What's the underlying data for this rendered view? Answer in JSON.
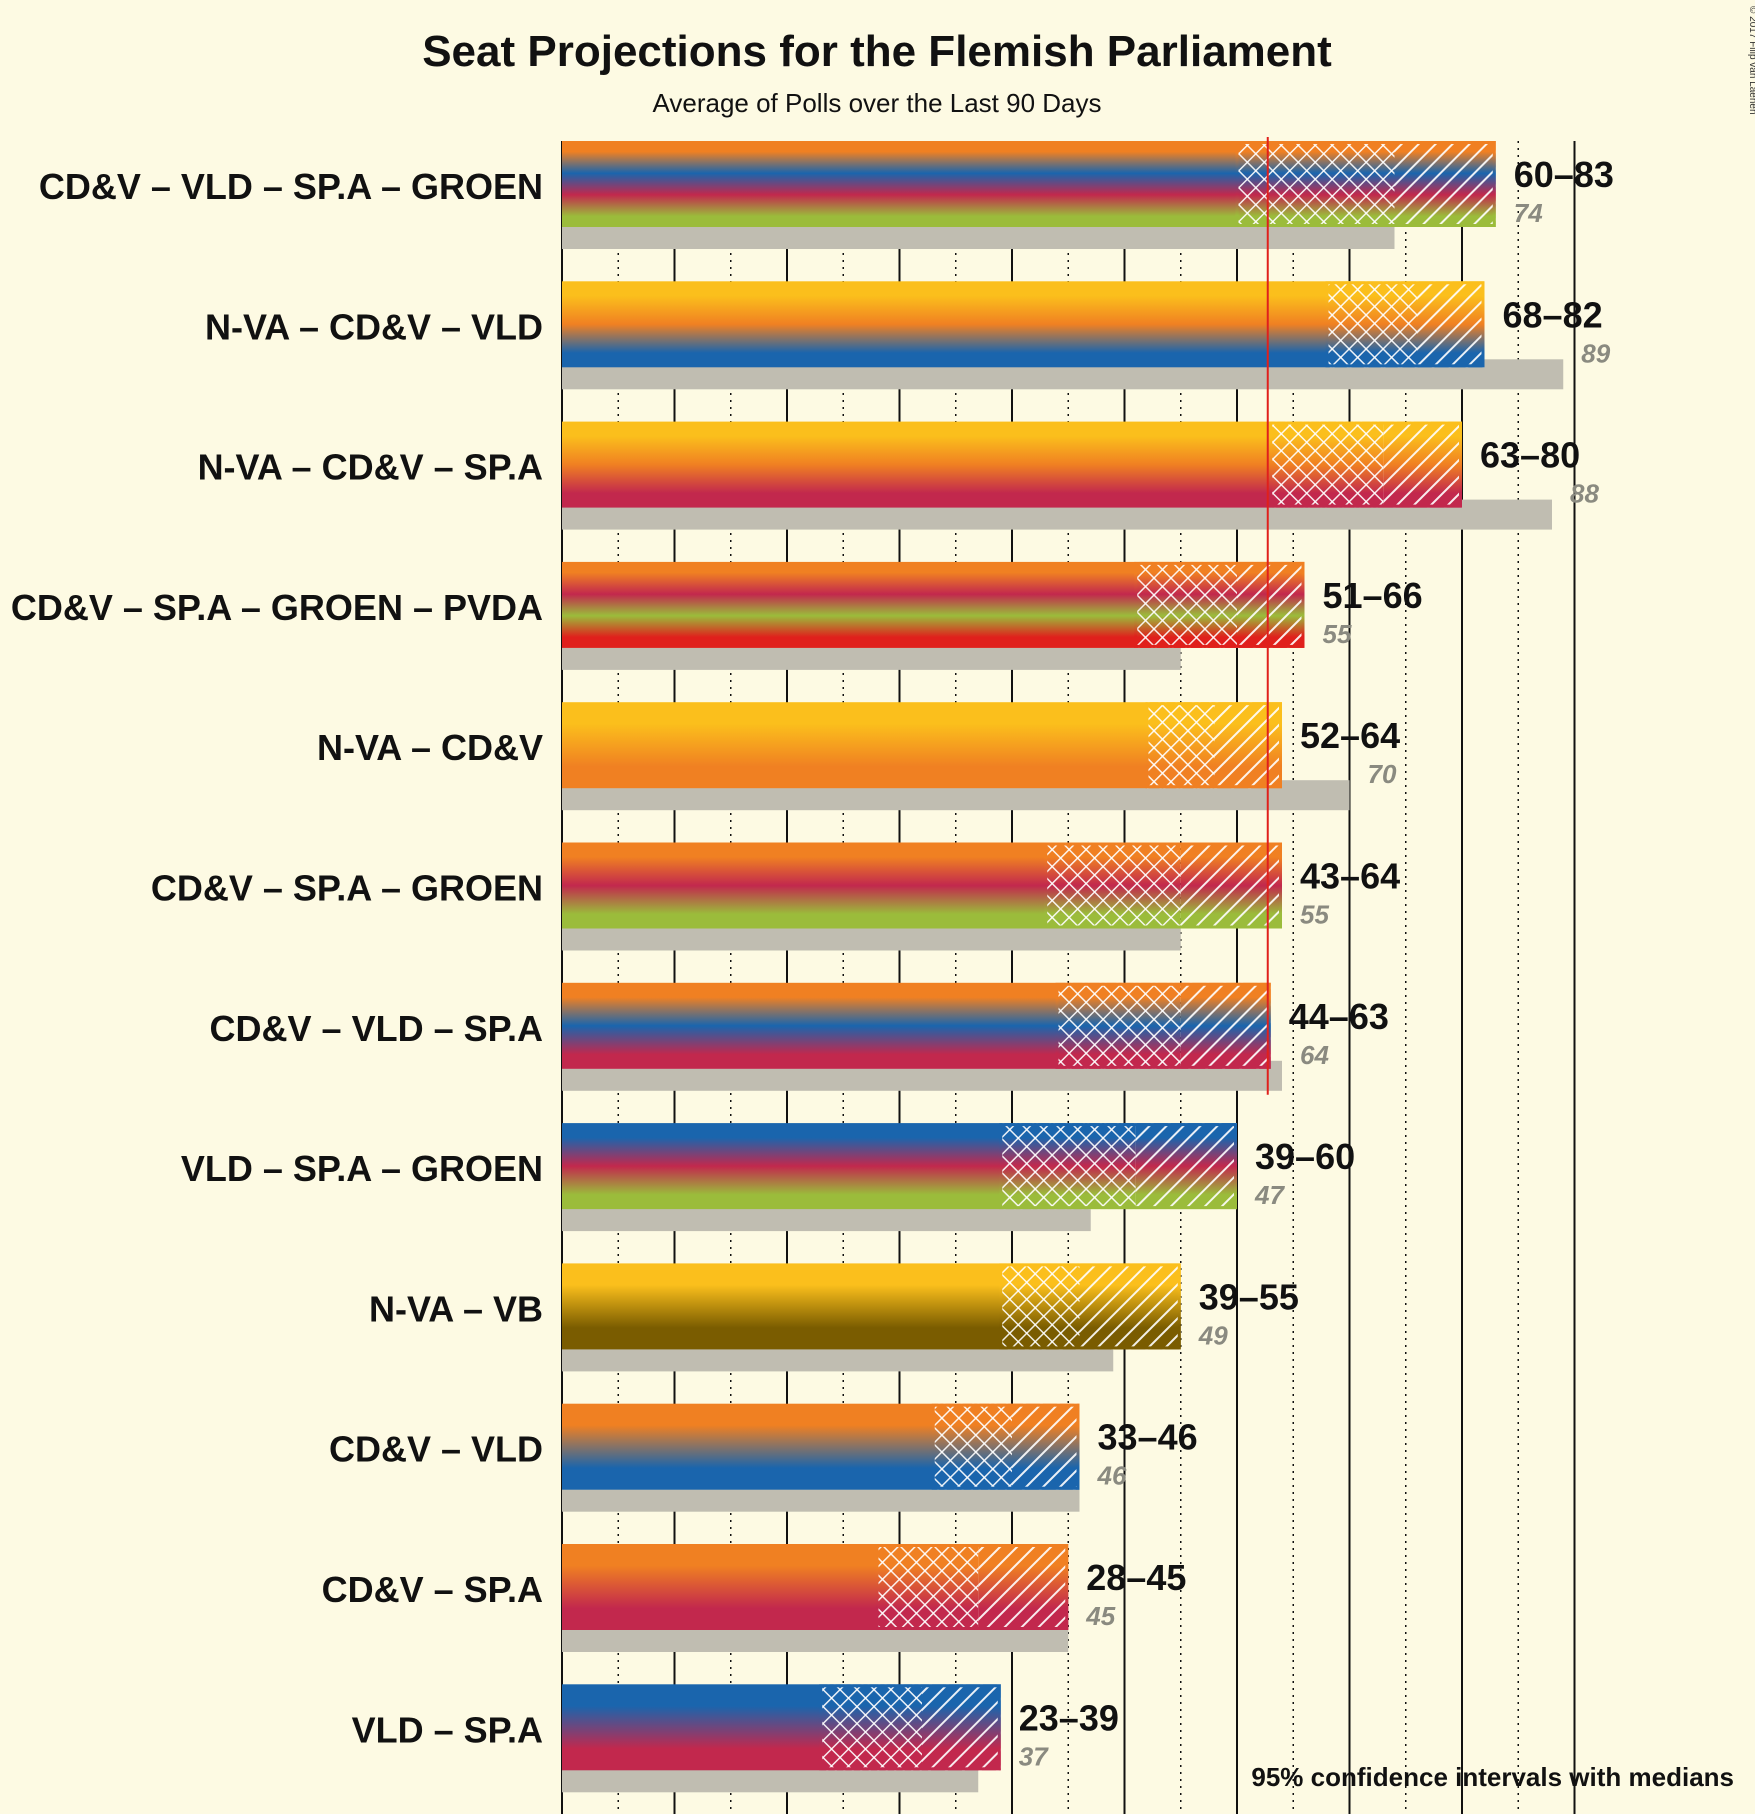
{
  "title": "Seat Projections for the Flemish Parliament",
  "subtitle": "Average of Polls over the Last 90 Days",
  "note": "95% confidence intervals with medians",
  "copyright": "© 2017 Filip van Laenen",
  "colors": {
    "background": "#fdfae3",
    "previous_result_bar": "#c0bdb1",
    "majority_line": "#e0201c",
    "CD&V": "#f08022",
    "VLD": "#1a65ad",
    "SP.A": "#c2284d",
    "GROEN": "#9bbc3b",
    "N-VA": "#fbbf1c",
    "PVDA": "#e0201c",
    "VB": "#7a5c00"
  },
  "chart_data": {
    "type": "bar",
    "orientation": "horizontal",
    "title": "Seat Projections for the Flemish Parliament",
    "subtitle": "Average of Polls over the Last 90 Days",
    "majority_threshold": 63,
    "xlim": [
      0,
      90
    ],
    "grid": "dotted vertical lines every 5 seats, solid every 10",
    "legend": "bottom-right note",
    "coalitions": [
      {
        "label": "CD&V – VLD – SP.A – GROEN",
        "parties": [
          "CD&V",
          "VLD",
          "SP.A",
          "GROEN"
        ],
        "low": 60,
        "median": 74,
        "high": 83,
        "range_label": "60–83",
        "previous": 74,
        "previous_label": "74"
      },
      {
        "label": "N-VA – CD&V – VLD",
        "parties": [
          "N-VA",
          "CD&V",
          "VLD"
        ],
        "low": 68,
        "median": 76,
        "high": 82,
        "range_label": "68–82",
        "previous": 89,
        "previous_label": "89"
      },
      {
        "label": "N-VA – CD&V – SP.A",
        "parties": [
          "N-VA",
          "CD&V",
          "SP.A"
        ],
        "low": 63,
        "median": 73,
        "high": 80,
        "range_label": "63–80",
        "previous": 88,
        "previous_label": "88"
      },
      {
        "label": "CD&V – SP.A – GROEN – PVDA",
        "parties": [
          "CD&V",
          "SP.A",
          "GROEN",
          "PVDA"
        ],
        "low": 51,
        "median": 60,
        "high": 66,
        "range_label": "51–66",
        "previous": 55,
        "previous_label": "55"
      },
      {
        "label": "N-VA – CD&V",
        "parties": [
          "N-VA",
          "CD&V"
        ],
        "low": 52,
        "median": 58,
        "high": 64,
        "range_label": "52–64",
        "previous": 70,
        "previous_label": "70"
      },
      {
        "label": "CD&V – SP.A – GROEN",
        "parties": [
          "CD&V",
          "SP.A",
          "GROEN"
        ],
        "low": 43,
        "median": 55,
        "high": 64,
        "range_label": "43–64",
        "previous": 55,
        "previous_label": "55"
      },
      {
        "label": "CD&V – VLD – SP.A",
        "parties": [
          "CD&V",
          "VLD",
          "SP.A"
        ],
        "low": 44,
        "median": 55,
        "high": 63,
        "range_label": "44–63",
        "previous": 64,
        "previous_label": "64"
      },
      {
        "label": "VLD – SP.A – GROEN",
        "parties": [
          "VLD",
          "SP.A",
          "GROEN"
        ],
        "low": 39,
        "median": 51,
        "high": 60,
        "range_label": "39–60",
        "previous": 47,
        "previous_label": "47"
      },
      {
        "label": "N-VA – VB",
        "parties": [
          "N-VA",
          "VB"
        ],
        "low": 39,
        "median": 46,
        "high": 55,
        "range_label": "39–55",
        "previous": 49,
        "previous_label": "49"
      },
      {
        "label": "CD&V – VLD",
        "parties": [
          "CD&V",
          "VLD"
        ],
        "low": 33,
        "median": 40,
        "high": 46,
        "range_label": "33–46",
        "previous": 46,
        "previous_label": "46"
      },
      {
        "label": "CD&V – SP.A",
        "parties": [
          "CD&V",
          "SP.A"
        ],
        "low": 28,
        "median": 37,
        "high": 45,
        "range_label": "28–45",
        "previous": 45,
        "previous_label": "45"
      },
      {
        "label": "VLD – SP.A",
        "parties": [
          "VLD",
          "SP.A"
        ],
        "low": 23,
        "median": 32,
        "high": 39,
        "range_label": "23–39",
        "previous": 37,
        "previous_label": "37"
      }
    ]
  }
}
